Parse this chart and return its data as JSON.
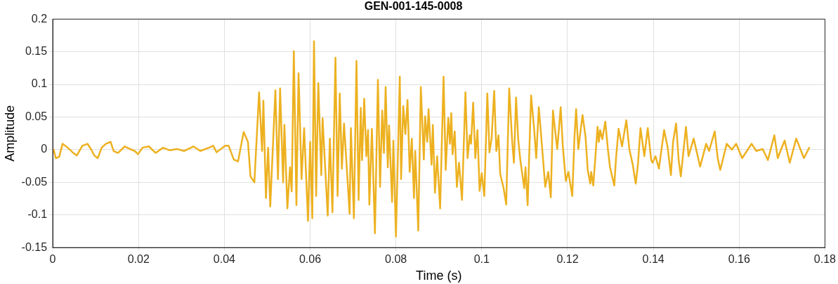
{
  "chart_data": {
    "type": "line",
    "title": "GEN-001-145-0008",
    "xlabel": "Time (s)",
    "ylabel": "Amplitude",
    "x": [
      0.0002,
      0.0007,
      0.0015,
      0.0023,
      0.0035,
      0.0048,
      0.0056,
      0.0069,
      0.0081,
      0.0089,
      0.0097,
      0.0105,
      0.0114,
      0.0124,
      0.0135,
      0.0142,
      0.0152,
      0.0168,
      0.018,
      0.0191,
      0.0199,
      0.0209,
      0.0224,
      0.024,
      0.0257,
      0.0273,
      0.029,
      0.0306,
      0.0328,
      0.0344,
      0.0364,
      0.0374,
      0.0382,
      0.0402,
      0.041,
      0.0422,
      0.0432,
      0.0445,
      0.0455,
      0.0461,
      0.047,
      0.0481,
      0.0488,
      0.0491,
      0.0497,
      0.0502,
      0.0507,
      0.0519,
      0.0525,
      0.053,
      0.0537,
      0.054,
      0.0547,
      0.0553,
      0.0557,
      0.0562,
      0.0568,
      0.0573,
      0.058,
      0.0586,
      0.0595,
      0.06,
      0.0605,
      0.0609,
      0.0614,
      0.0619,
      0.0626,
      0.0629,
      0.0641,
      0.0646,
      0.0652,
      0.0659,
      0.0664,
      0.0669,
      0.0674,
      0.0679,
      0.0692,
      0.0695,
      0.0702,
      0.0708,
      0.0713,
      0.0718,
      0.0721,
      0.0726,
      0.0731,
      0.0735,
      0.0738,
      0.0744,
      0.0751,
      0.0758,
      0.0763,
      0.0768,
      0.0772,
      0.0776,
      0.0781,
      0.0784,
      0.0791,
      0.0794,
      0.08,
      0.0809,
      0.0812,
      0.0817,
      0.0822,
      0.0827,
      0.0832,
      0.0837,
      0.0842,
      0.0845,
      0.0852,
      0.0858,
      0.0865,
      0.0868,
      0.0873,
      0.0876,
      0.0883,
      0.0886,
      0.0891,
      0.0896,
      0.0903,
      0.0911,
      0.0916,
      0.0922,
      0.0926,
      0.0929,
      0.0932,
      0.0937,
      0.0942,
      0.0947,
      0.0954,
      0.0962,
      0.0967,
      0.0972,
      0.0975,
      0.098,
      0.0985,
      0.099,
      0.0995,
      0.1,
      0.1006,
      0.1013,
      0.1018,
      0.1023,
      0.1029,
      0.1034,
      0.1039,
      0.1043,
      0.1051,
      0.1057,
      0.1064,
      0.1071,
      0.1075,
      0.108,
      0.1085,
      0.109,
      0.1099,
      0.1102,
      0.1107,
      0.1115,
      0.1122,
      0.1127,
      0.1133,
      0.1141,
      0.1148,
      0.1155,
      0.1161,
      0.1166,
      0.1171,
      0.1176,
      0.1184,
      0.1189,
      0.1196,
      0.1202,
      0.1211,
      0.1216,
      0.122,
      0.1225,
      0.1235,
      0.1242,
      0.1247,
      0.1253,
      0.1255,
      0.126,
      0.127,
      0.1273,
      0.1276,
      0.1281,
      0.1288,
      0.1294,
      0.1299,
      0.1309,
      0.1313,
      0.1319,
      0.1327,
      0.1337,
      0.1344,
      0.1352,
      0.1359,
      0.1364,
      0.137,
      0.1379,
      0.1387,
      0.1395,
      0.1398,
      0.1405,
      0.1413,
      0.1425,
      0.1433,
      0.1441,
      0.1446,
      0.1453,
      0.1459,
      0.1464,
      0.1476,
      0.1482,
      0.1494,
      0.1509,
      0.1523,
      0.153,
      0.1543,
      0.155,
      0.1556,
      0.1571,
      0.1583,
      0.1593,
      0.1607,
      0.1629,
      0.164,
      0.1655,
      0.1667,
      0.1682,
      0.169,
      0.1698,
      0.1706,
      0.1718,
      0.1733,
      0.1751,
      0.1764
    ],
    "series": [
      {
        "color": "#edb120",
        "values": [
          0.001,
          -0.013,
          -0.011,
          0.009,
          0.003,
          -0.005,
          -0.009,
          0.006,
          0.009,
          0.001,
          -0.009,
          -0.013,
          0.003,
          0.009,
          0.012,
          -0.002,
          -0.005,
          0.005,
          0.001,
          -0.002,
          -0.007,
          0.003,
          0.005,
          -0.005,
          0.003,
          -0.001,
          0.001,
          -0.002,
          0.005,
          -0.002,
          0.003,
          0.006,
          -0.004,
          0.006,
          0.006,
          -0.015,
          -0.018,
          0.027,
          0.012,
          -0.041,
          -0.05,
          0.088,
          -0.002,
          0.075,
          -0.074,
          0.003,
          -0.087,
          0.091,
          -0.045,
          0.094,
          -0.05,
          0.038,
          -0.09,
          -0.027,
          -0.064,
          0.151,
          -0.085,
          0.117,
          -0.045,
          0.033,
          -0.109,
          0.012,
          -0.105,
          0.166,
          -0.071,
          0.102,
          -0.039,
          0.048,
          -0.101,
          0.017,
          -0.096,
          0.141,
          -0.071,
          0.086,
          -0.029,
          0.04,
          -0.098,
          0.033,
          -0.105,
          0.136,
          -0.077,
          0.064,
          -0.016,
          0.078,
          -0.01,
          0.03,
          -0.084,
          0.032,
          -0.128,
          0.107,
          -0.057,
          0.06,
          -0.005,
          0.096,
          -0.027,
          0.037,
          -0.08,
          0.014,
          -0.133,
          0.112,
          -0.045,
          0.067,
          0.024,
          0.076,
          -0.034,
          0.017,
          -0.074,
          -0.002,
          -0.124,
          0.096,
          -0.015,
          0.051,
          0.012,
          0.062,
          -0.023,
          0.038,
          -0.066,
          -0.01,
          -0.09,
          0.112,
          -0.031,
          0.049,
          0.009,
          0.056,
          -0.007,
          0.028,
          -0.057,
          -0.02,
          -0.077,
          0.088,
          -0.013,
          0.022,
          0.009,
          0.072,
          -0.013,
          0.03,
          -0.063,
          -0.036,
          -0.071,
          0.086,
          -0.004,
          0.017,
          0.09,
          -0.002,
          0.022,
          -0.037,
          -0.059,
          -0.084,
          0.094,
          0.012,
          -0.02,
          0.08,
          0.016,
          -0.016,
          -0.059,
          -0.027,
          -0.085,
          0.083,
          0.033,
          -0.013,
          0.065,
          0.001,
          -0.057,
          -0.034,
          -0.073,
          0.06,
          0.03,
          0.001,
          0.065,
          0.005,
          -0.048,
          -0.034,
          -0.071,
          0.017,
          0.062,
          0.001,
          0.053,
          0.019,
          -0.031,
          -0.052,
          -0.034,
          -0.055,
          0.035,
          0.012,
          0.03,
          0.016,
          0.043,
          0.001,
          -0.027,
          -0.055,
          -0.013,
          0.032,
          0.005,
          0.045,
          0.001,
          -0.023,
          -0.052,
          -0.023,
          0.033,
          -0.01,
          0.033,
          -0.016,
          -0.02,
          -0.01,
          -0.029,
          0.03,
          0.005,
          -0.039,
          0.012,
          0.04,
          -0.016,
          -0.041,
          0.035,
          -0.01,
          0.017,
          -0.026,
          0.009,
          -0.002,
          0.028,
          -0.013,
          -0.031,
          0.009,
          0,
          0.009,
          -0.013,
          0.009,
          -0.002,
          0.001,
          -0.016,
          0.022,
          -0.013,
          0.001,
          0.014,
          -0.02,
          0.017,
          -0.013,
          0.004
        ]
      }
    ],
    "xlim": [
      0,
      0.18
    ],
    "xticks": [
      0,
      0.02,
      0.04,
      0.06,
      0.08,
      0.1,
      0.12,
      0.14,
      0.16,
      0.18
    ],
    "ylim": [
      -0.15,
      0.2
    ],
    "yticks": [
      -0.15,
      -0.1,
      -0.05,
      0,
      0.05,
      0.1,
      0.15,
      0.2
    ],
    "grid": true,
    "legend": false,
    "marker": "none",
    "line_style": "solid"
  }
}
